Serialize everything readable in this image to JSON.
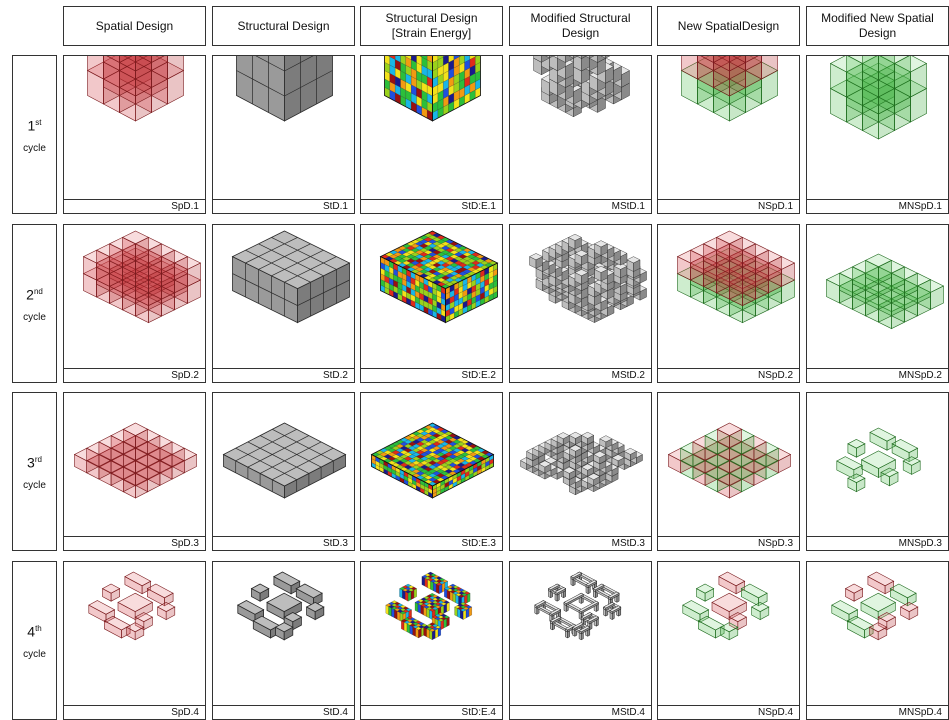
{
  "columns": [
    {
      "title": "Spatial Design"
    },
    {
      "title": "Structural Design"
    },
    {
      "title": "Structural Design\n[Strain Energy]"
    },
    {
      "title": "Modified Structural\nDesign"
    },
    {
      "title": "New SpatialDesign"
    },
    {
      "title": "Modified New Spatial\nDesign"
    }
  ],
  "rows": [
    {
      "num": "1",
      "sup": "st",
      "cycle": "cycle",
      "captions": [
        "SpD.1",
        "StD.1",
        "StD:E.1",
        "MStD.1",
        "NSpD.1",
        "MNSpD.1"
      ]
    },
    {
      "num": "2",
      "sup": "nd",
      "cycle": "cycle",
      "captions": [
        "SpD.2",
        "StD.2",
        "StD:E.2",
        "MStD.2",
        "NSpD.2",
        "MNSpD.2"
      ]
    },
    {
      "num": "3",
      "sup": "rd",
      "cycle": "cycle",
      "captions": [
        "SpD.3",
        "StD.3",
        "StD:E.3",
        "MStD.3",
        "NSpD.3",
        "MNSpD.3"
      ]
    },
    {
      "num": "4",
      "sup": "th",
      "cycle": "cycle",
      "captions": [
        "SpD.4",
        "StD.4",
        "StD:E.4",
        "MStD.4",
        "NSpD.4",
        "MNSpD.4"
      ]
    }
  ],
  "colors": {
    "spatial_red": "#c0282d",
    "structural_gray": "#9e9e9e",
    "structural_edge": "#3a3a3a",
    "new_green": "#3aa83a",
    "heatmap": [
      "#1a1a8c",
      "#1f4fe0",
      "#19b6e6",
      "#2bbf3a",
      "#9ad21b",
      "#f2e21a",
      "#f29a12",
      "#e02a1a",
      "#9a1010"
    ]
  }
}
